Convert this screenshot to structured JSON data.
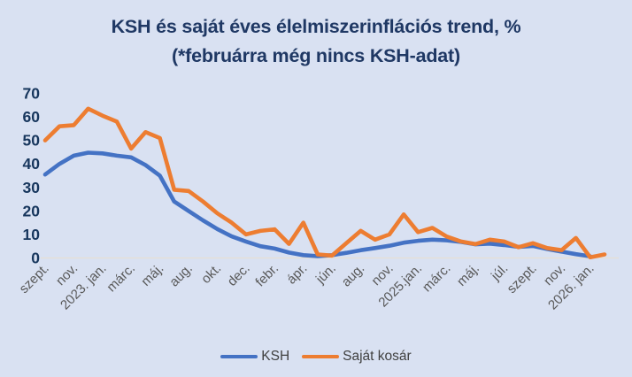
{
  "title": {
    "line1": "KSH és saját éves élelmiszerinflációs trend, %",
    "line2": "(*februárra még nincs KSH-adat)"
  },
  "legend": [
    {
      "label": "KSH",
      "color": "#4472c4"
    },
    {
      "label": "Saját kosár",
      "color": "#ed7d31"
    }
  ],
  "colors": {
    "background": "#d9e1f2",
    "title_text": "#1f3864",
    "y_axis_text": "#17365d",
    "x_axis_text": "#595959",
    "legend_text": "#404040",
    "zero_gridline": "#e6e0d5",
    "ksh_line": "#4472c4",
    "sajat_kosar_line": "#ed7d31"
  },
  "chart_data": {
    "type": "line",
    "title": "KSH és saját éves élelmiszerinflációs trend, %",
    "subtitle": "(*februárra még nincs KSH-adat)",
    "categories": [
      "szept.",
      "",
      "nov.",
      "",
      "2023. jan.",
      "",
      "márc.",
      "",
      "máj.",
      "",
      "aug.",
      "",
      "okt.",
      "",
      "dec.",
      "",
      "febr.",
      "",
      "ápr.",
      "",
      "jún.",
      "",
      "aug.",
      "",
      "nov.",
      "",
      "2025.jan.",
      "",
      "márc.",
      "",
      "máj.",
      "",
      "júl.",
      "",
      "szept.",
      "",
      "nov.",
      "",
      "2026. jan.",
      ""
    ],
    "series": [
      {
        "name": "KSH",
        "color": "#4472c4",
        "values": [
          35.5,
          40,
          43.5,
          44.8,
          44.5,
          43.5,
          42.8,
          39.5,
          35,
          24,
          20,
          16,
          12.3,
          9.2,
          7,
          5,
          4,
          2.3,
          1.2,
          0.8,
          1.2,
          2.2,
          3.3,
          4.2,
          5.2,
          6.5,
          7.3,
          7.8,
          7.5,
          6.8,
          5.8,
          6.1,
          5.5,
          4.7,
          5.1,
          3.8,
          2.7,
          1.6,
          0.7,
          null
        ]
      },
      {
        "name": "Saját kosár",
        "color": "#ed7d31",
        "values": [
          50,
          56,
          56.5,
          63.5,
          60.5,
          58,
          46.5,
          53.5,
          51,
          29,
          28.5,
          24,
          19,
          15,
          10,
          11.5,
          12.2,
          6,
          15,
          1.5,
          1,
          6.3,
          11.5,
          7.8,
          10,
          18.5,
          11,
          12.8,
          9.1,
          7,
          5.9,
          7.8,
          7,
          4.6,
          6.3,
          4.2,
          3.3,
          8.5,
          0.3,
          1.5
        ]
      }
    ],
    "ylim": [
      0,
      70
    ],
    "yticks": [
      0,
      10,
      20,
      30,
      40,
      50,
      60,
      70
    ],
    "grid": "zero-baseline-only",
    "x_tick_rotation_deg": -45,
    "legend_position": "bottom"
  }
}
